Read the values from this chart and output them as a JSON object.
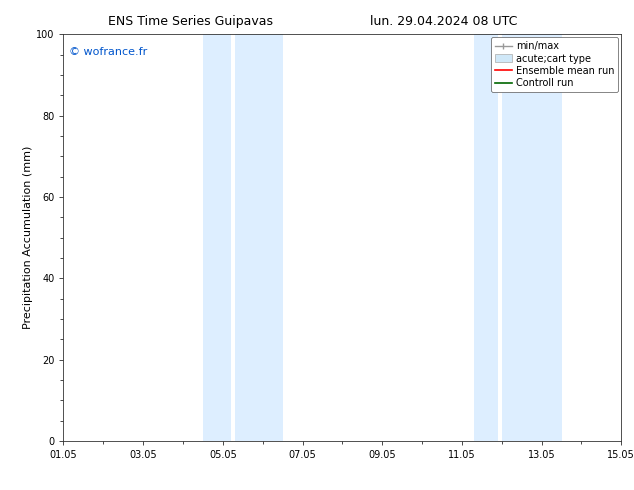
{
  "title_left": "ENS Time Series Guipavas",
  "title_right": "lun. 29.04.2024 08 UTC",
  "ylabel": "Precipitation Accumulation (mm)",
  "watermark": "© wofrance.fr",
  "watermark_color": "#0055cc",
  "ylim": [
    0,
    100
  ],
  "xtick_labels": [
    "01.05",
    "03.05",
    "05.05",
    "07.05",
    "09.05",
    "11.05",
    "13.05",
    "15.05"
  ],
  "xtick_positions": [
    0,
    2,
    4,
    6,
    8,
    10,
    12,
    14
  ],
  "shade_regions": [
    {
      "x_start": 3.5,
      "x_end": 4.2,
      "color": "#ddeeff"
    },
    {
      "x_start": 4.3,
      "x_end": 5.5,
      "color": "#ddeeff"
    },
    {
      "x_start": 10.3,
      "x_end": 10.9,
      "color": "#ddeeff"
    },
    {
      "x_start": 11.0,
      "x_end": 12.5,
      "color": "#ddeeff"
    }
  ],
  "legend_items": [
    {
      "label": "min/max",
      "color": "#999999",
      "type": "errorbar"
    },
    {
      "label": "acute;cart type",
      "color": "#d0e8f8",
      "type": "box"
    },
    {
      "label": "Ensemble mean run",
      "color": "red",
      "type": "line"
    },
    {
      "label": "Controll run",
      "color": "green",
      "type": "line"
    }
  ],
  "background_color": "#ffffff",
  "plot_bg_color": "#ffffff",
  "spine_color": "#333333",
  "title_fontsize": 9,
  "tick_fontsize": 7,
  "label_fontsize": 8,
  "legend_fontsize": 7,
  "watermark_fontsize": 8
}
